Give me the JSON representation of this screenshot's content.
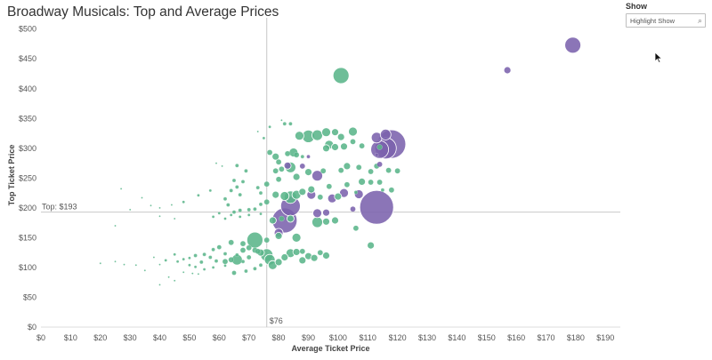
{
  "title": "Broadway Musicals: Top and Average Prices",
  "filter": {
    "label": "Show",
    "placeholder": "Highlight Show"
  },
  "colors": {
    "play": "#5ab58a",
    "musical": "#7b62ad",
    "refline": "#c8c8c8",
    "axis_text": "#555555"
  },
  "chart_data": {
    "type": "scatter",
    "title": "Broadway Musicals: Top and Average Prices",
    "xlabel": "Average Ticket Price",
    "ylabel": "Top Ticket Price",
    "xlim": [
      0,
      195
    ],
    "ylim": [
      0,
      510
    ],
    "x_ticks": [
      "$0",
      "$10",
      "$20",
      "$30",
      "$40",
      "$50",
      "$60",
      "$70",
      "$80",
      "$90",
      "$100",
      "$110",
      "$120",
      "$130",
      "$140",
      "$150",
      "$160",
      "$170",
      "$180",
      "$190"
    ],
    "y_ticks": [
      "$0",
      "$50",
      "$100",
      "$150",
      "$200",
      "$250",
      "$300",
      "$350",
      "$400",
      "$450",
      "$500"
    ],
    "reference_lines": {
      "x_value": 76,
      "x_label": "$76",
      "y_value": 193,
      "y_label": "Top: $193"
    },
    "grid": false,
    "series": [
      {
        "color": "#5ab58a",
        "points": [
          [
            101,
            422,
            9
          ],
          [
            82,
            341,
            2
          ],
          [
            84,
            341,
            2
          ],
          [
            81,
            347,
            1
          ],
          [
            77,
            336,
            1.5
          ],
          [
            73,
            328,
            1
          ],
          [
            75,
            317,
            1.5
          ],
          [
            87,
            321,
            5
          ],
          [
            90,
            320,
            7
          ],
          [
            93,
            322,
            6
          ],
          [
            96,
            327,
            5
          ],
          [
            99,
            327,
            4
          ],
          [
            101,
            319,
            4
          ],
          [
            105,
            328,
            5
          ],
          [
            97,
            306,
            5
          ],
          [
            99,
            302,
            4
          ],
          [
            96,
            300,
            4
          ],
          [
            102,
            303,
            4
          ],
          [
            105,
            311,
            3
          ],
          [
            108,
            304,
            3
          ],
          [
            114,
            302,
            3
          ],
          [
            77,
            293,
            3
          ],
          [
            79,
            286,
            4
          ],
          [
            80,
            277,
            3
          ],
          [
            83,
            291,
            3
          ],
          [
            85,
            293,
            5
          ],
          [
            86,
            289,
            3
          ],
          [
            88,
            286,
            2
          ],
          [
            84,
            268,
            6
          ],
          [
            81,
            265,
            3
          ],
          [
            79,
            262,
            3
          ],
          [
            90,
            260,
            4
          ],
          [
            95,
            262,
            3
          ],
          [
            101,
            263,
            3
          ],
          [
            103,
            270,
            4
          ],
          [
            107,
            268,
            3
          ],
          [
            111,
            261,
            3
          ],
          [
            113,
            270,
            3
          ],
          [
            117,
            263,
            3
          ],
          [
            120,
            262,
            3
          ],
          [
            86,
            252,
            4
          ],
          [
            80,
            248,
            3
          ],
          [
            76,
            240,
            3
          ],
          [
            73,
            234,
            2
          ],
          [
            74,
            225,
            2
          ],
          [
            79,
            222,
            4
          ],
          [
            82,
            220,
            5
          ],
          [
            84,
            218,
            7
          ],
          [
            86,
            222,
            5
          ],
          [
            88,
            227,
            4
          ],
          [
            91,
            231,
            4
          ],
          [
            97,
            236,
            3
          ],
          [
            103,
            239,
            3
          ],
          [
            108,
            244,
            4
          ],
          [
            111,
            243,
            3
          ],
          [
            114,
            243,
            3
          ],
          [
            118,
            230,
            3
          ],
          [
            115,
            230,
            2
          ],
          [
            106,
            226,
            2
          ],
          [
            100,
            219,
            4
          ],
          [
            94,
            218,
            3
          ],
          [
            76,
            210,
            3
          ],
          [
            74,
            206,
            2
          ],
          [
            72,
            198,
            2
          ],
          [
            70,
            197,
            2
          ],
          [
            67,
            196,
            2
          ],
          [
            65,
            193,
            2
          ],
          [
            63,
            205,
            2
          ],
          [
            62,
            215,
            2
          ],
          [
            64,
            229,
            2
          ],
          [
            65,
            246,
            2
          ],
          [
            66,
            235,
            2
          ],
          [
            67,
            222,
            2
          ],
          [
            68,
            244,
            2
          ],
          [
            69,
            262,
            2
          ],
          [
            66,
            271,
            2
          ],
          [
            57,
            229,
            1.5
          ],
          [
            53,
            221,
            1.5
          ],
          [
            48,
            210,
            1.5
          ],
          [
            44,
            205,
            1
          ],
          [
            40,
            200,
            1
          ],
          [
            37,
            204,
            1
          ],
          [
            34,
            217,
            1
          ],
          [
            30,
            197,
            1
          ],
          [
            27,
            232,
            1
          ],
          [
            25,
            170,
            1
          ],
          [
            40,
            186,
            1
          ],
          [
            45,
            182,
            1
          ],
          [
            60,
            191,
            1.5
          ],
          [
            58,
            185,
            1.5
          ],
          [
            62,
            182,
            1.5
          ],
          [
            64,
            188,
            1.5
          ],
          [
            67,
            185,
            1.5
          ],
          [
            70,
            188,
            1.5
          ],
          [
            74,
            190,
            1.5
          ],
          [
            61,
            270,
            1
          ],
          [
            59,
            275,
            1
          ],
          [
            78,
            179,
            4
          ],
          [
            81,
            182,
            3
          ],
          [
            84,
            182,
            4
          ],
          [
            93,
            176,
            6
          ],
          [
            96,
            177,
            4
          ],
          [
            99,
            179,
            4
          ],
          [
            106,
            166,
            3
          ],
          [
            111,
            137,
            4
          ],
          [
            86,
            150,
            5
          ],
          [
            80,
            153,
            4
          ],
          [
            76,
            146,
            3
          ],
          [
            72,
            146,
            9
          ],
          [
            68,
            140,
            3
          ],
          [
            64,
            142,
            3
          ],
          [
            60,
            134,
            2.5
          ],
          [
            58,
            130,
            2
          ],
          [
            62,
            123,
            2
          ],
          [
            66,
            121,
            2
          ],
          [
            68,
            129,
            3
          ],
          [
            70,
            133,
            3
          ],
          [
            72,
            129,
            3
          ],
          [
            74,
            125,
            4
          ],
          [
            76,
            121,
            7
          ],
          [
            77,
            113,
            6
          ],
          [
            78,
            104,
            5
          ],
          [
            80,
            109,
            4
          ],
          [
            82,
            117,
            4
          ],
          [
            84,
            124,
            5
          ],
          [
            86,
            126,
            4
          ],
          [
            88,
            127,
            3
          ],
          [
            90,
            119,
            4
          ],
          [
            92,
            116,
            4
          ],
          [
            96,
            120,
            4
          ],
          [
            94,
            125,
            3
          ],
          [
            88,
            112,
            4
          ],
          [
            73,
            127,
            3
          ],
          [
            70,
            117,
            2.5
          ],
          [
            68,
            110,
            2
          ],
          [
            66,
            113,
            6
          ],
          [
            64,
            113,
            3
          ],
          [
            62,
            110,
            3
          ],
          [
            59,
            111,
            2
          ],
          [
            57,
            117,
            2
          ],
          [
            55,
            122,
            2
          ],
          [
            54,
            109,
            2
          ],
          [
            52,
            120,
            2
          ],
          [
            50,
            116,
            1.5
          ],
          [
            48,
            114,
            1.5
          ],
          [
            46,
            110,
            1.5
          ],
          [
            50,
            104,
            1.5
          ],
          [
            52,
            101,
            1.5
          ],
          [
            55,
            97,
            1.5
          ],
          [
            58,
            100,
            1.5
          ],
          [
            62,
            103,
            1.5
          ],
          [
            65,
            91,
            2.5
          ],
          [
            69,
            94,
            2
          ],
          [
            72,
            98,
            2
          ],
          [
            74,
            104,
            2
          ],
          [
            45,
            122,
            1.5
          ],
          [
            42,
            112,
            1.5
          ],
          [
            40,
            105,
            1
          ],
          [
            38,
            117,
            1
          ],
          [
            35,
            95,
            1
          ],
          [
            32,
            104,
            1
          ],
          [
            28,
            105,
            1
          ],
          [
            25,
            110,
            1
          ],
          [
            20,
            107,
            1
          ],
          [
            40,
            71,
            1
          ],
          [
            43,
            84,
            1
          ],
          [
            45,
            78,
            1
          ],
          [
            48,
            92,
            1
          ],
          [
            51,
            90,
            1
          ],
          [
            53,
            89,
            1
          ]
        ]
      },
      {
        "color": "#7b62ad",
        "points": [
          [
            179,
            473,
            9
          ],
          [
            157,
            431,
            4
          ],
          [
            118,
            307,
            16
          ],
          [
            116,
            300,
            12
          ],
          [
            114,
            298,
            10
          ],
          [
            113,
            318,
            6
          ],
          [
            116,
            323,
            6
          ],
          [
            114,
            273,
            3
          ],
          [
            113,
            289,
            2
          ],
          [
            113,
            201,
            19
          ],
          [
            84,
            203,
            11
          ],
          [
            82,
            179,
            14
          ],
          [
            80,
            158,
            5
          ],
          [
            93,
            254,
            6
          ],
          [
            91,
            222,
            5
          ],
          [
            98,
            216,
            5
          ],
          [
            102,
            225,
            5
          ],
          [
            107,
            223,
            5
          ],
          [
            93,
            191,
            5
          ],
          [
            96,
            192,
            4
          ],
          [
            105,
            198,
            3
          ],
          [
            90,
            286,
            2
          ],
          [
            83,
            271,
            4
          ],
          [
            88,
            270,
            3
          ]
        ]
      }
    ]
  }
}
